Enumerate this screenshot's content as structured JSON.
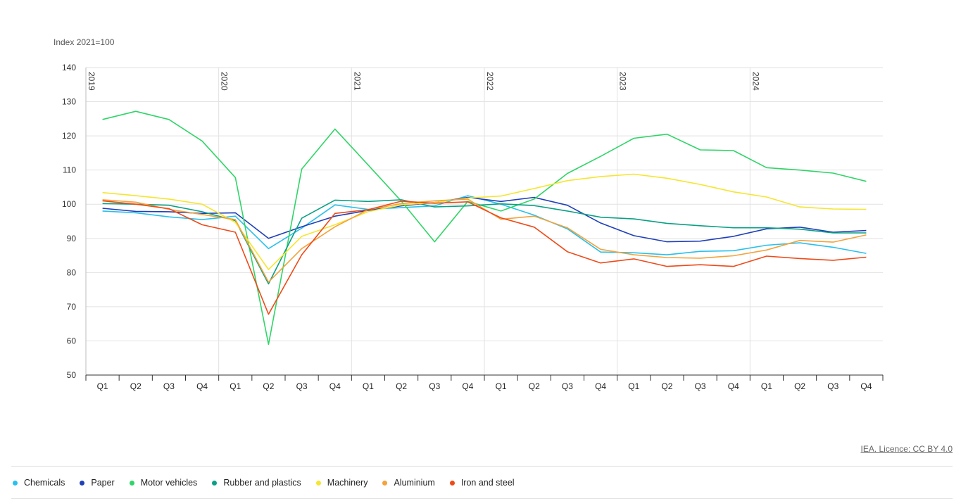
{
  "chart_data": {
    "type": "line",
    "ylabel": "Index 2021=100",
    "ylim": [
      50,
      140
    ],
    "yticks": [
      50,
      60,
      70,
      80,
      90,
      100,
      110,
      120,
      130,
      140
    ],
    "grid": true,
    "years": [
      "2019",
      "2020",
      "2021",
      "2022",
      "2023",
      "2024"
    ],
    "categories": [
      "Q1",
      "Q2",
      "Q3",
      "Q4",
      "Q1",
      "Q2",
      "Q3",
      "Q4",
      "Q1",
      "Q2",
      "Q3",
      "Q4",
      "Q1",
      "Q2",
      "Q3",
      "Q4",
      "Q1",
      "Q2",
      "Q3",
      "Q4",
      "Q1",
      "Q2",
      "Q3",
      "Q4"
    ],
    "legend_position": "bottom",
    "series": [
      {
        "name": "Chemicals",
        "color": "#28c0ec",
        "values": [
          98,
          97.5,
          96.3,
          95.5,
          96.5,
          87,
          93,
          99.8,
          98.5,
          99,
          99.5,
          102.5,
          100,
          96.8,
          92.8,
          86,
          85.8,
          85.2,
          86.2,
          86.4,
          88,
          88.7,
          87.4,
          85.6
        ]
      },
      {
        "name": "Paper",
        "color": "#1f3fb8",
        "values": [
          98.8,
          97.9,
          97.8,
          97.3,
          97.5,
          90,
          93.4,
          96.5,
          98.2,
          99.5,
          100.5,
          102,
          100.8,
          102,
          99.7,
          94.5,
          90.8,
          89,
          89.2,
          90.6,
          92.8,
          93.3,
          91.8,
          92.3
        ]
      },
      {
        "name": "Motor vehicles",
        "color": "#2fd567",
        "values": [
          124.8,
          127.2,
          124.8,
          118.5,
          107.8,
          59,
          110.3,
          122,
          111.5,
          100.9,
          89,
          100.8,
          98,
          101.5,
          109,
          114,
          119.3,
          120.5,
          115.9,
          115.7,
          110.7,
          110,
          109.1,
          106.7
        ]
      },
      {
        "name": "Rubber and plastics",
        "color": "#0aa084",
        "values": [
          100.2,
          100,
          99.7,
          97.8,
          95.2,
          76.7,
          95.9,
          101.2,
          100.8,
          101.3,
          99.2,
          99.5,
          100.1,
          99.6,
          98,
          96.2,
          95.7,
          94.4,
          93.7,
          93.1,
          93.1,
          92.7,
          91.6,
          91.6
        ]
      },
      {
        "name": "Machinery",
        "color": "#f5e52f",
        "values": [
          103.4,
          102.5,
          101.5,
          100,
          94.7,
          80.9,
          90.6,
          94,
          97.8,
          99.8,
          100.5,
          101.8,
          102.4,
          104.6,
          106.9,
          108.1,
          108.8,
          107.6,
          105.8,
          103.6,
          102.1,
          99.2,
          98.6,
          98.5
        ]
      },
      {
        "name": "Aluminium",
        "color": "#f4a23a",
        "values": [
          101.3,
          100.6,
          98.5,
          97,
          95.5,
          77.2,
          87,
          93.4,
          98.4,
          100.2,
          101,
          101.5,
          95.6,
          96.5,
          93.1,
          86.8,
          85.2,
          84.4,
          84.2,
          84.9,
          86.6,
          89.4,
          88.9,
          91
        ]
      },
      {
        "name": "Iron and steel",
        "color": "#ee4a18",
        "values": [
          101,
          100,
          98.7,
          94,
          91.8,
          67.8,
          85.2,
          97.3,
          98.4,
          100.9,
          100.3,
          100.7,
          96,
          93.3,
          86.1,
          82.8,
          84,
          81.8,
          82.3,
          81.8,
          84.8,
          84.1,
          83.6,
          84.5
        ]
      }
    ]
  },
  "credit": "IEA. Licence: CC BY 4.0"
}
